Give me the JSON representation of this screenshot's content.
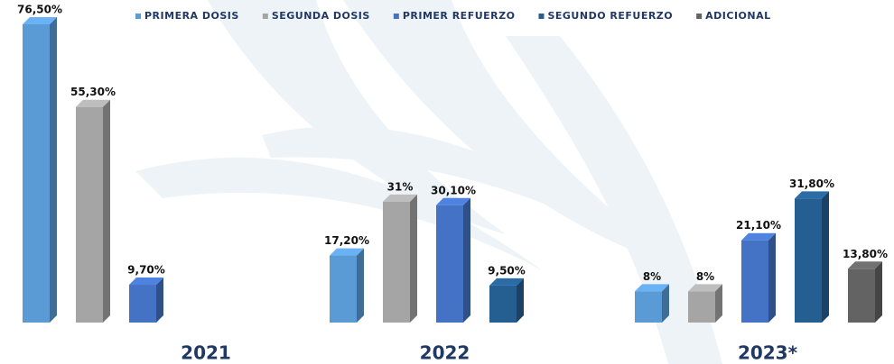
{
  "chart_data": {
    "type": "bar3d",
    "categories": [
      "2021",
      "2022",
      "2023*"
    ],
    "series": [
      {
        "name": "PRIMERA DOSIS",
        "color": "#5b9bd5",
        "values": [
          76.5,
          17.2,
          8
        ],
        "value_labels": [
          "76,50%",
          "17,20%",
          "8%"
        ]
      },
      {
        "name": "SEGUNDA DOSIS",
        "color": "#a5a5a5",
        "values": [
          55.3,
          31,
          8
        ],
        "value_labels": [
          "55,30%",
          "31%",
          "8%"
        ]
      },
      {
        "name": "PRIMER REFUERZO",
        "color": "#4472c4",
        "values": [
          9.7,
          30.1,
          21.1
        ],
        "value_labels": [
          "9,70%",
          "30,10%",
          "21,10%"
        ]
      },
      {
        "name": "SEGUNDO REFUERZO",
        "color": "#255e91",
        "values": [
          null,
          9.5,
          31.8
        ],
        "value_labels": [
          null,
          "9,50%",
          "31,80%"
        ]
      },
      {
        "name": "ADICIONAL",
        "color": "#636363",
        "values": [
          null,
          null,
          13.8
        ],
        "value_labels": [
          null,
          null,
          "13,80%"
        ]
      }
    ],
    "legend": "top-right"
  }
}
